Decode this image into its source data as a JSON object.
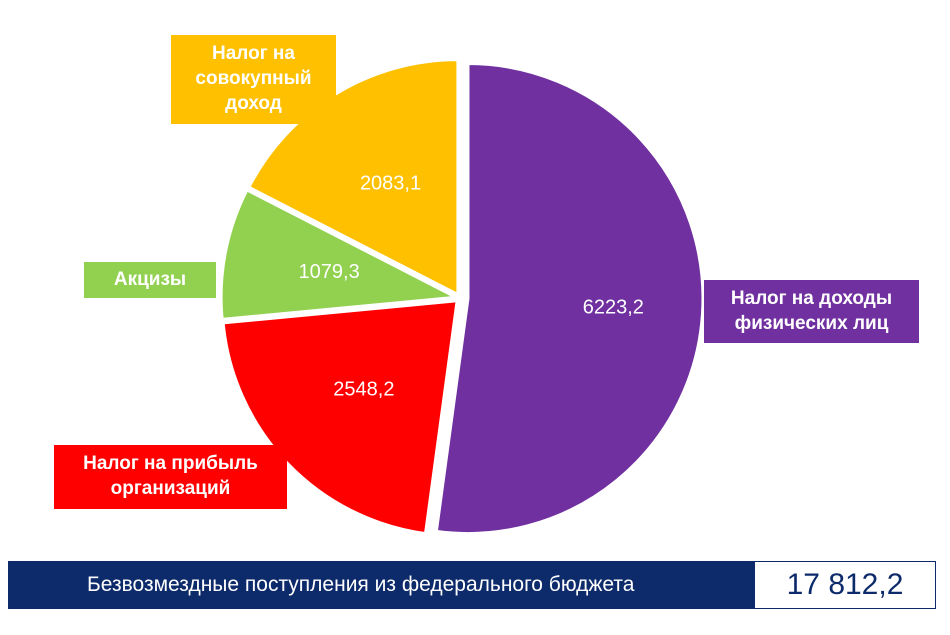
{
  "chart_data": {
    "type": "pie",
    "slices": [
      {
        "label": "Налог на доходы\nфизических лиц",
        "value": 6223.2,
        "value_text": "6223,2",
        "color": "#7030a0"
      },
      {
        "label": "Налог на прибыль\nорганизаций",
        "value": 2548.2,
        "value_text": "2548,2",
        "color": "#ff0000"
      },
      {
        "label": "Акцизы",
        "value": 1079.3,
        "value_text": "1079,3",
        "color": "#92d050"
      },
      {
        "label": "Налог на\nсовокупный\nдоход",
        "value": 2083.1,
        "value_text": "2083,1",
        "color": "#ffc000"
      }
    ]
  },
  "footer": {
    "label": "Безвозмездные поступления из федерального бюджета",
    "value": "17 812,2"
  }
}
